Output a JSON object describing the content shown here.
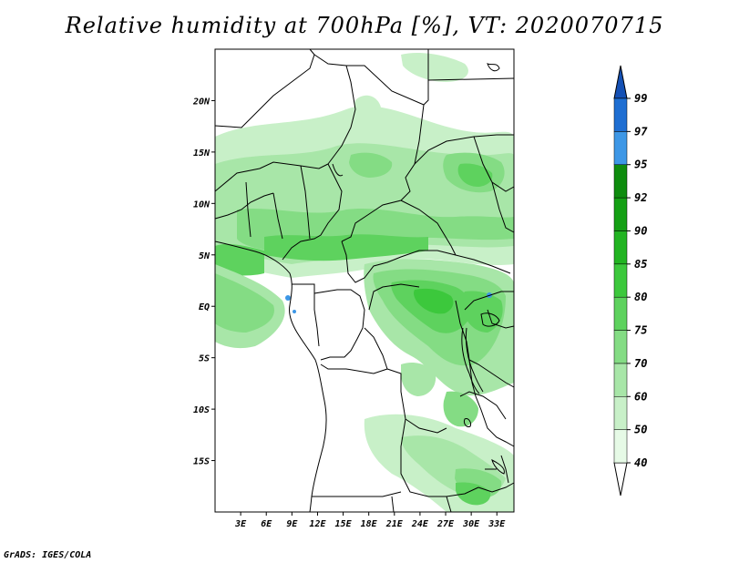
{
  "title": "Relative humidity at 700hPa [%], VT: 2020070715",
  "footer": "GrADS: IGES/COLA",
  "map": {
    "lon_range": [
      0,
      35
    ],
    "lat_range": [
      -20,
      25
    ],
    "x_tick_labels": [
      "3E",
      "6E",
      "9E",
      "12E",
      "15E",
      "18E",
      "21E",
      "24E",
      "27E",
      "30E",
      "33E"
    ],
    "y_tick_labels": [
      "20N",
      "15N",
      "10N",
      "5N",
      "EQ",
      "5S",
      "10S",
      "15S"
    ]
  },
  "colorbar": {
    "labels": [
      "40",
      "50",
      "60",
      "70",
      "75",
      "80",
      "85",
      "90",
      "92",
      "95",
      "97",
      "99"
    ],
    "colors": [
      "#ffffff",
      "#e6fae6",
      "#c8f0c8",
      "#a8e6a8",
      "#84dc84",
      "#5ed25e",
      "#3cc83c",
      "#22b422",
      "#14a014",
      "#0e8c0e",
      "#3d97e6",
      "#1e6ed2",
      "#1450b4"
    ]
  }
}
